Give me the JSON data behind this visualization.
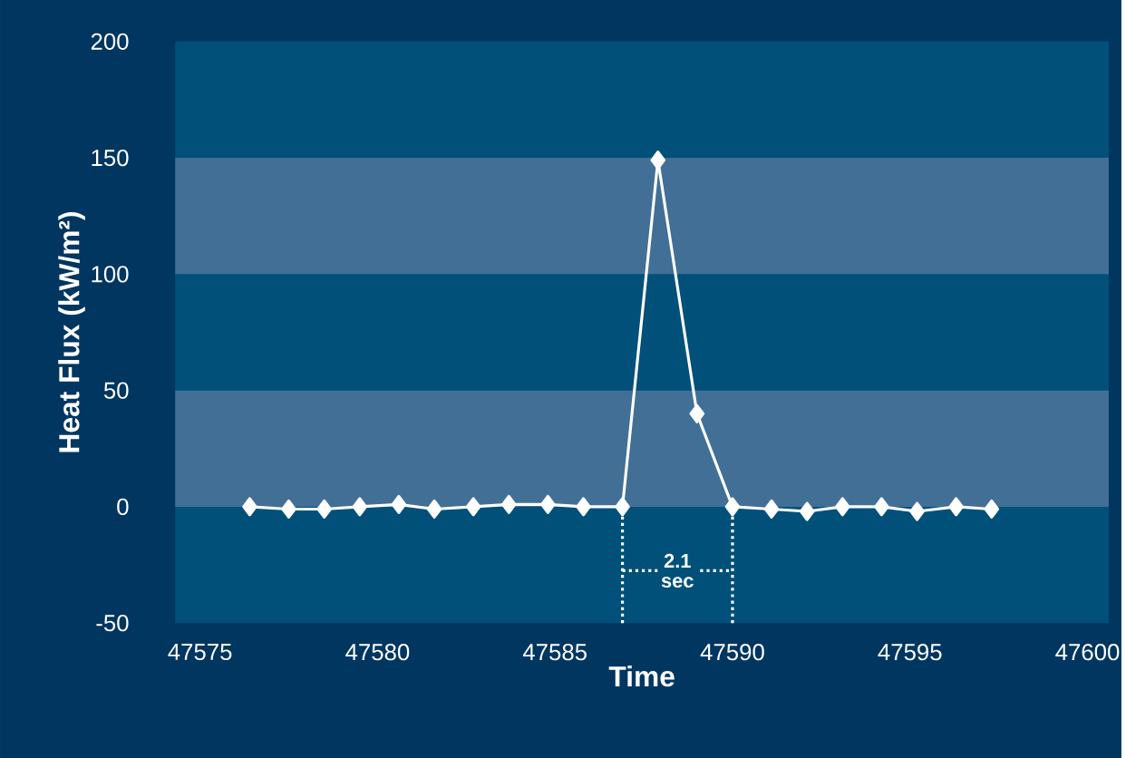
{
  "chart_data": {
    "type": "line",
    "xlabel": "Time",
    "ylabel": "Heat Flux (kW/m²)",
    "x": [
      47576.4,
      47577.5,
      47578.5,
      47579.5,
      47580.6,
      47581.6,
      47582.7,
      47583.7,
      47584.8,
      47585.8,
      47586.9,
      47587.9,
      47589.0,
      47590.0,
      47591.1,
      47592.1,
      47593.1,
      47594.2,
      47595.2,
      47596.3,
      47597.3
    ],
    "series": [
      {
        "color": "#ffffff",
        "values": [
          0,
          -1,
          -1,
          0,
          1,
          -1,
          0,
          1,
          1,
          0,
          0,
          149,
          40,
          0,
          -1,
          -2,
          0,
          0,
          -2,
          0,
          -1
        ]
      }
    ],
    "marker": "diamond",
    "line_style": "solid",
    "xlim": [
      47574.3,
      47600.6
    ],
    "xticks": [
      47575,
      47580,
      47585,
      47590,
      47595,
      47600
    ],
    "ylim": [
      -50,
      200
    ],
    "yticks": [
      -50,
      0,
      50,
      100,
      150,
      200
    ],
    "bands": [
      {
        "axis": "y",
        "from": 0,
        "to": 50,
        "color": "#426f96"
      },
      {
        "axis": "y",
        "from": 100,
        "to": 150,
        "color": "#426f96"
      }
    ],
    "ref_lines": [
      {
        "axis": "x",
        "value": 47586.9,
        "color": "#ffffff",
        "line_style": "dotted"
      },
      {
        "axis": "x",
        "value": 47590.0,
        "color": "#ffffff",
        "line_style": "dotted"
      }
    ],
    "annotations": [
      "2.1 sec"
    ]
  }
}
